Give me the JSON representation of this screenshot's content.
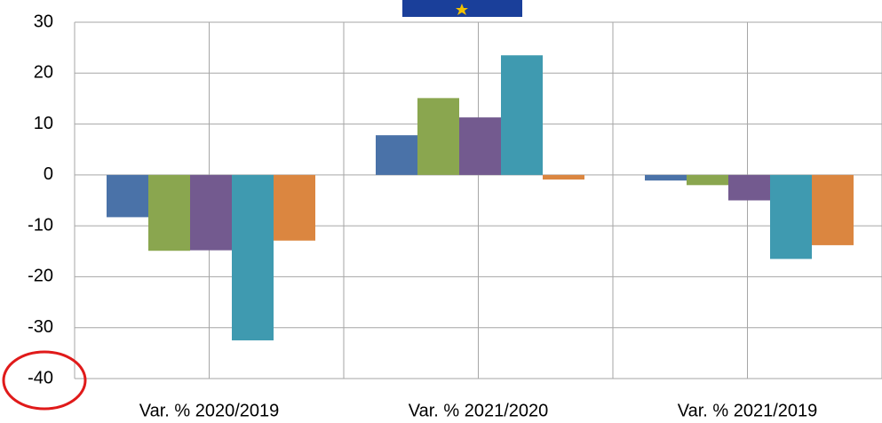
{
  "chart_data": {
    "type": "bar",
    "categories": [
      "Var. % 2020/2019",
      "Var. % 2021/2020",
      "Var. % 2021/2019"
    ],
    "series": [
      {
        "color": "#4a72a8",
        "values": [
          -8.3,
          7.8,
          -1.1
        ]
      },
      {
        "color": "#8aa64f",
        "values": [
          -14.9,
          15.1,
          -2.0
        ]
      },
      {
        "color": "#735a8f",
        "values": [
          -14.8,
          11.3,
          -5.0
        ]
      },
      {
        "color": "#3f9ab0",
        "values": [
          -32.5,
          23.5,
          -16.5
        ]
      },
      {
        "color": "#db8640",
        "values": [
          -12.9,
          -0.9,
          -13.8
        ]
      }
    ],
    "ylim": [
      -40,
      30
    ],
    "yticks": [
      -40,
      -30,
      -20,
      -10,
      0,
      10,
      20,
      30
    ],
    "grid": true
  }
}
